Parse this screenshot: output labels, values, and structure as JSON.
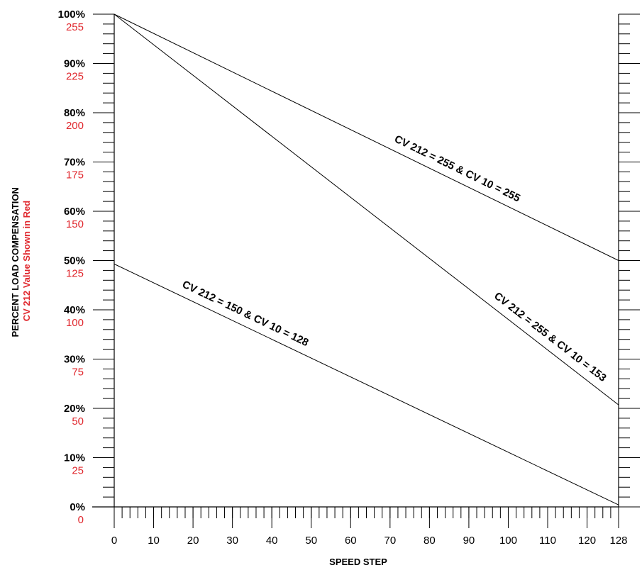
{
  "chart_data": {
    "type": "line",
    "xlabel": "SPEED STEP",
    "ylabel_black": "PERCENT LOAD COMPENSATION",
    "ylabel_red": "CV 212 Value Shown in Red",
    "xlim": [
      0,
      128
    ],
    "ylim": [
      0,
      100
    ],
    "x_ticks": [
      0,
      10,
      20,
      30,
      40,
      50,
      60,
      70,
      80,
      90,
      100,
      110,
      120,
      128
    ],
    "x_tick_labels": [
      "0",
      "10",
      "20",
      "30",
      "40",
      "50",
      "60",
      "70",
      "80",
      "90",
      "100",
      "110",
      "120",
      "128"
    ],
    "y_ticks": [
      0,
      10,
      20,
      30,
      40,
      50,
      60,
      70,
      80,
      90,
      100
    ],
    "y_tick_labels": [
      "0%",
      "10%",
      "20%",
      "30%",
      "40%",
      "50%",
      "60%",
      "70%",
      "80%",
      "90%",
      "100%"
    ],
    "cv_tick_labels": [
      "0",
      "25",
      "50",
      "75",
      "100",
      "125",
      "150",
      "175",
      "200",
      "225",
      "255"
    ],
    "grid": false,
    "series": [
      {
        "name": "CV 212 = 255 & CV 10 = 255",
        "x": [
          0,
          128
        ],
        "y": [
          100,
          50
        ]
      },
      {
        "name": "CV 212 = 255 & CV 10 = 153",
        "x": [
          0,
          128
        ],
        "y": [
          100,
          20.7
        ]
      },
      {
        "name": "CV 212 = 150 & CV 10 = 128",
        "x": [
          0,
          128
        ],
        "y": [
          49.3,
          0.4
        ]
      }
    ]
  },
  "colors": {
    "red": "#e0282e",
    "black": "#000000"
  }
}
